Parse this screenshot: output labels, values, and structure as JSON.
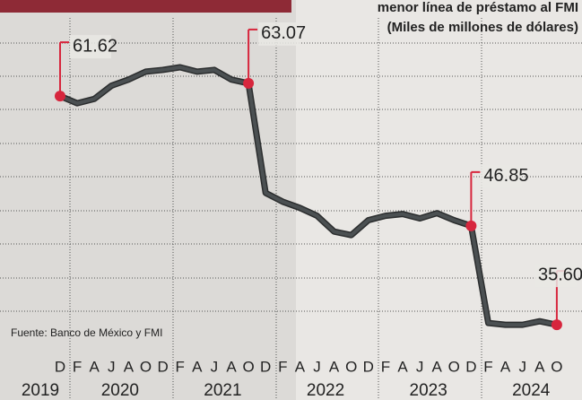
{
  "chart_data": {
    "type": "line",
    "title": "menor línea de préstamo al FMI",
    "subtitle": "(Miles de millones de dólares)",
    "source": "Fuente: Banco de México y FMI",
    "categories": [
      "D",
      "F",
      "A",
      "J",
      "A",
      "O",
      "D",
      "F",
      "A",
      "J",
      "A",
      "O",
      "D",
      "F",
      "A",
      "J",
      "A",
      "O",
      "D",
      "F",
      "A",
      "J",
      "A",
      "O",
      "D",
      "F",
      "A",
      "J",
      "A",
      "O"
    ],
    "years": [
      "2019",
      "2020",
      "2021",
      "2022",
      "2023",
      "2024"
    ],
    "values": [
      61.62,
      60.8,
      61.3,
      62.8,
      63.5,
      64.4,
      64.6,
      64.9,
      64.4,
      64.6,
      63.5,
      63.07,
      50.6,
      49.6,
      48.9,
      48.0,
      46.2,
      45.8,
      47.5,
      48.0,
      48.2,
      47.7,
      48.3,
      47.5,
      46.85,
      35.8,
      35.6,
      35.6,
      36.0,
      35.6
    ],
    "value_labels": [
      "61.62",
      null,
      null,
      null,
      null,
      null,
      null,
      null,
      null,
      null,
      null,
      "63.07",
      null,
      null,
      null,
      null,
      null,
      null,
      null,
      null,
      null,
      null,
      null,
      null,
      "46.85",
      null,
      null,
      null,
      null,
      "35.60"
    ],
    "color": "#4b5052",
    "marker_color": "#d7263d",
    "ylim": [
      30,
      70
    ]
  }
}
